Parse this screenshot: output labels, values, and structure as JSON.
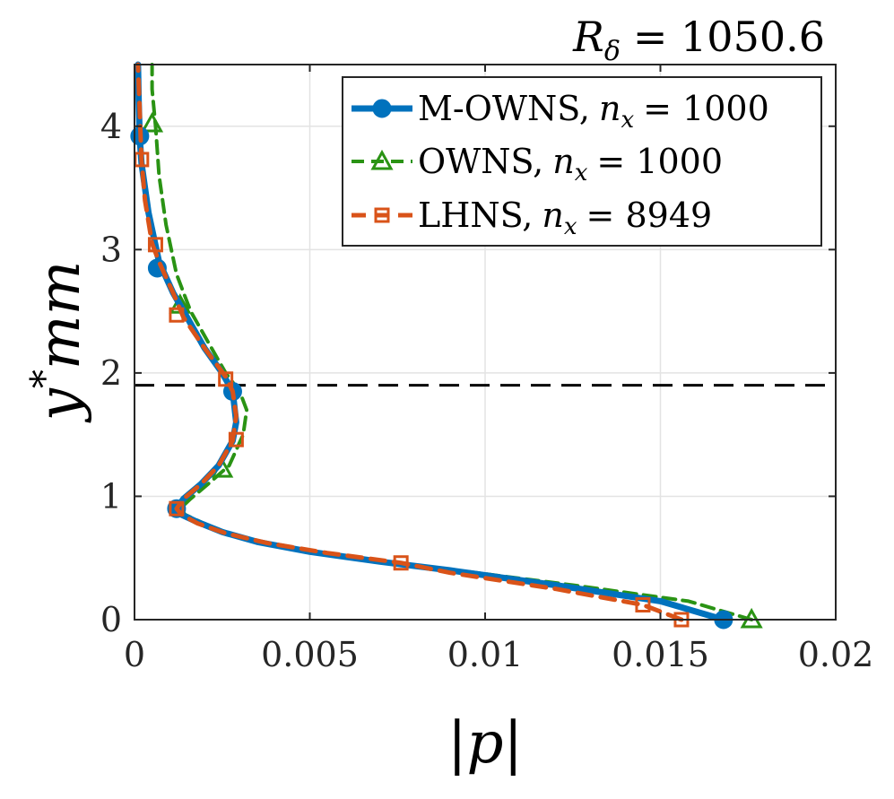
{
  "chart_data": {
    "type": "line",
    "title": "R_δ = 1050.6",
    "title_main": "R",
    "title_sub": "δ",
    "title_rest": "= 1050.6",
    "xlabel": "|p|",
    "ylabel": "y*mm",
    "ylabel_main": "y",
    "ylabel_sup": "*",
    "ylabel_rest": "mm",
    "xlim": [
      0,
      0.02
    ],
    "ylim": [
      0,
      4.5
    ],
    "xticks": [
      0,
      0.005,
      0.01,
      0.015,
      0.02
    ],
    "xtick_labels": [
      "0",
      "0.005",
      "0.01",
      "0.015",
      "0.02"
    ],
    "yticks": [
      0,
      1,
      2,
      3,
      4
    ],
    "ytick_labels": [
      "0",
      "1",
      "2",
      "3",
      "4"
    ],
    "grid": true,
    "legend_position": "top-right",
    "reference_line": {
      "y": 1.9,
      "style": "dashed",
      "color": "#000000"
    },
    "series": [
      {
        "name": "M-OWNS, n_x = 1000",
        "legend_main": "M-OWNS,",
        "legend_var": "n",
        "legend_sub": "x",
        "legend_rest": "= 1000",
        "color": "#0072BD",
        "line": "solid",
        "marker": "circle",
        "x": [
          0.0168,
          0.015,
          0.012,
          0.009,
          0.007,
          0.005,
          0.0035,
          0.0025,
          0.0018,
          0.00135,
          0.0012,
          0.0014,
          0.0019,
          0.0024,
          0.0028,
          0.0029,
          0.0028,
          0.0025,
          0.002,
          0.0015,
          0.0011,
          0.0007,
          0.0004,
          0.0002,
          0.00015,
          0.00012,
          0.0001
        ],
        "y": [
          0.0,
          0.15,
          0.28,
          0.4,
          0.47,
          0.55,
          0.63,
          0.71,
          0.79,
          0.85,
          0.9,
          0.98,
          1.1,
          1.25,
          1.45,
          1.6,
          1.85,
          2.0,
          2.2,
          2.45,
          2.65,
          2.9,
          3.3,
          3.7,
          3.9,
          4.2,
          4.5
        ],
        "marker_x": [
          0.0168,
          0.0012,
          0.0028,
          0.00065,
          0.00015
        ],
        "marker_y": [
          0.0,
          0.9,
          1.85,
          2.85,
          3.92
        ]
      },
      {
        "name": "OWNS, n_x = 1000",
        "legend_main": "OWNS,",
        "legend_var": "n",
        "legend_sub": "x",
        "legend_rest": "= 1000",
        "color": "#2A9314",
        "line": "dashed",
        "marker": "triangle",
        "x": [
          0.0176,
          0.0158,
          0.0125,
          0.0092,
          0.0071,
          0.0051,
          0.0036,
          0.0026,
          0.0019,
          0.00145,
          0.0013,
          0.0016,
          0.0021,
          0.0027,
          0.0031,
          0.0032,
          0.003,
          0.0026,
          0.0021,
          0.0016,
          0.0012,
          0.0009,
          0.0007,
          0.0006,
          0.0005,
          0.0005
        ],
        "y": [
          0.0,
          0.15,
          0.28,
          0.4,
          0.47,
          0.55,
          0.63,
          0.71,
          0.79,
          0.85,
          0.9,
          0.98,
          1.1,
          1.25,
          1.5,
          1.7,
          1.85,
          2.0,
          2.25,
          2.5,
          2.8,
          3.2,
          3.6,
          4.0,
          4.3,
          4.5
        ],
        "marker_x": [
          0.0176,
          0.0025,
          0.0013,
          0.0005
        ],
        "marker_y": [
          0.0,
          1.22,
          2.55,
          4.02
        ]
      },
      {
        "name": "LHNS, n_x = 8949",
        "legend_main": "LHNS,",
        "legend_var": "n",
        "legend_sub": "x",
        "legend_rest": "= 8949",
        "color": "#D95319",
        "line": "dashed",
        "marker": "square",
        "x": [
          0.0156,
          0.0145,
          0.012,
          0.009,
          0.0076,
          0.0055,
          0.0038,
          0.0026,
          0.0018,
          0.00135,
          0.0012,
          0.0014,
          0.0019,
          0.0024,
          0.0028,
          0.0029,
          0.0028,
          0.0026,
          0.002,
          0.0014,
          0.0011,
          0.0007,
          0.0005,
          0.0003,
          0.0002,
          0.0001
        ],
        "y": [
          0.0,
          0.12,
          0.25,
          0.38,
          0.46,
          0.54,
          0.62,
          0.7,
          0.78,
          0.85,
          0.9,
          0.98,
          1.1,
          1.25,
          1.45,
          1.65,
          1.85,
          1.97,
          2.2,
          2.45,
          2.65,
          2.9,
          3.05,
          3.4,
          3.73,
          4.5
        ],
        "marker_x": [
          0.0156,
          0.0145,
          0.0076,
          0.0012,
          0.0029,
          0.0026,
          0.0012,
          0.0006,
          0.0002
        ],
        "marker_y": [
          0.0,
          0.12,
          0.46,
          0.9,
          1.46,
          1.95,
          2.47,
          3.04,
          3.73
        ]
      }
    ]
  }
}
